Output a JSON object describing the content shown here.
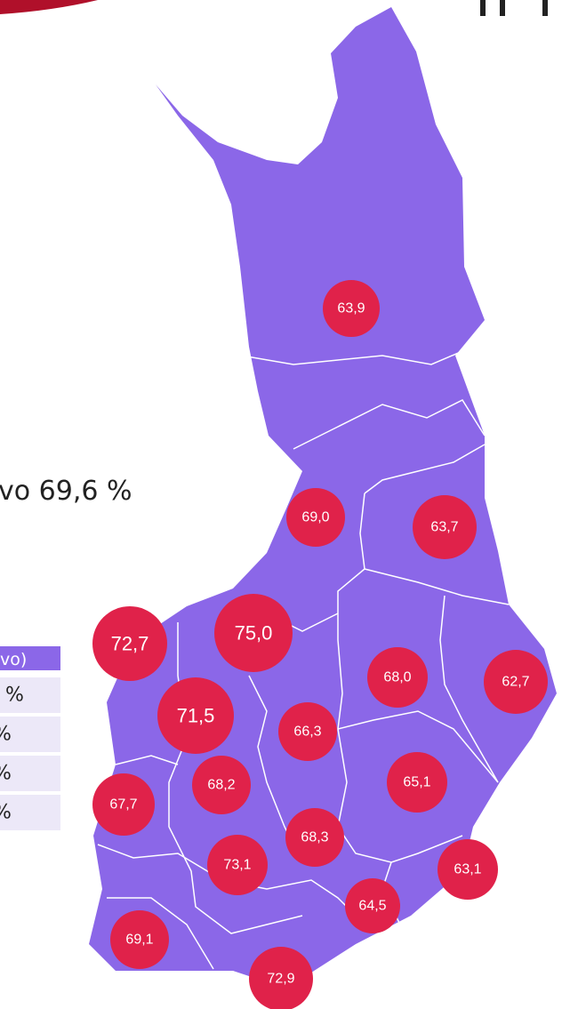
{
  "headline": "vo 69,6 %",
  "table": {
    "header": "vo)",
    "rows": [
      "%",
      "%",
      "%",
      "%"
    ]
  },
  "regions": [
    {
      "value": 63.9,
      "label": "63,9"
    },
    {
      "value": 69.0,
      "label": "69,0"
    },
    {
      "value": 63.7,
      "label": "63,7"
    },
    {
      "value": 75.0,
      "label": "75,0"
    },
    {
      "value": 72.7,
      "label": "72,7"
    },
    {
      "value": 68.0,
      "label": "68,0"
    },
    {
      "value": 62.7,
      "label": "62,7"
    },
    {
      "value": 71.5,
      "label": "71,5"
    },
    {
      "value": 66.3,
      "label": "66,3"
    },
    {
      "value": 68.2,
      "label": "68,2"
    },
    {
      "value": 65.1,
      "label": "65,1"
    },
    {
      "value": 67.7,
      "label": "67,7"
    },
    {
      "value": 68.3,
      "label": "68,3"
    },
    {
      "value": 73.1,
      "label": "73,1"
    },
    {
      "value": 63.1,
      "label": "63,1"
    },
    {
      "value": 64.5,
      "label": "64,5"
    },
    {
      "value": 69.1,
      "label": "69,1"
    },
    {
      "value": 72.9,
      "label": "72,9"
    }
  ]
}
